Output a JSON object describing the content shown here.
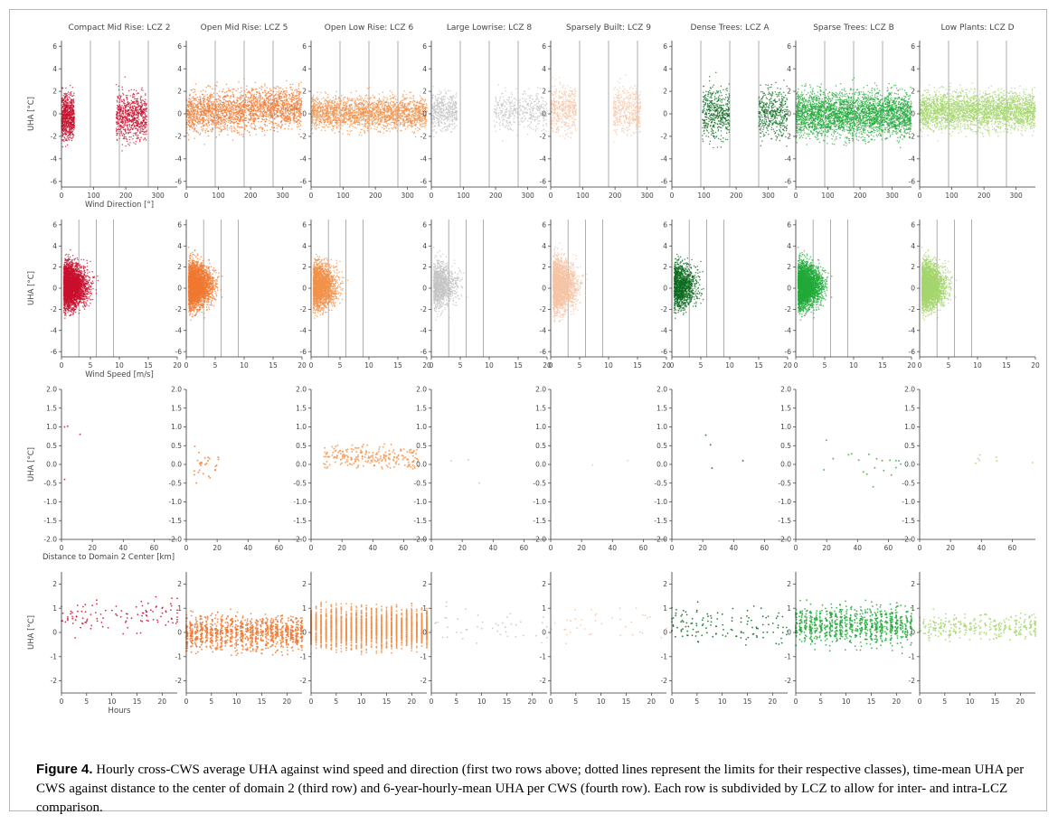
{
  "figure": {
    "caption_label": "Figure 4.",
    "caption_text": " Hourly cross-CWS average UHA against wind speed and direction (first two rows above; dotted lines represent the limits for their respective classes), time-mean UHA per CWS against distance to the center of domain 2 (third row) and 6-year-hourly-mean UHA per CWS (fourth row). Each row is subdivided by LCZ to allow for inter- and intra-LCZ comparison."
  },
  "chart_data": {
    "type": "scatter",
    "columns": [
      {
        "title": "Compact Mid Rise: LCZ 2",
        "color": "#c8102e"
      },
      {
        "title": "Open Mid Rise: LCZ 5",
        "color": "#f07830"
      },
      {
        "title": "Open Low Rise: LCZ 6",
        "color": "#f2914a"
      },
      {
        "title": "Large Lowrise: LCZ 8",
        "color": "#c4c4c4"
      },
      {
        "title": "Sparsely Built: LCZ 9",
        "color": "#f6c4a6"
      },
      {
        "title": "Dense Trees: LCZ A",
        "color": "#0a6b1e"
      },
      {
        "title": "Sparse Trees: LCZ B",
        "color": "#22aa3a"
      },
      {
        "title": "Low Plants: LCZ D",
        "color": "#a6d66e"
      }
    ],
    "rows": [
      {
        "variable": "wind_direction",
        "xlabel": "Wind Direction [°]",
        "ylabel": "UHA [°C]",
        "xlim": [
          0,
          360
        ],
        "ylim": [
          -6.5,
          6.5
        ],
        "xticks": [
          0,
          100,
          200,
          300
        ],
        "yticks": [
          -6,
          -4,
          -2,
          0,
          2,
          4,
          6
        ],
        "class_limits": [
          90,
          180,
          270
        ],
        "observed_ranges": [
          [
            [
              0,
              40
            ],
            [
              170,
              265
            ]
          ],
          [
            [
              0,
              360
            ]
          ],
          [
            [
              0,
              360
            ]
          ],
          [
            [
              0,
              80
            ],
            [
              195,
              360
            ]
          ],
          [
            [
              0,
              80
            ],
            [
              195,
              280
            ]
          ],
          [
            [
              95,
              180
            ],
            [
              270,
              360
            ]
          ],
          [
            [
              0,
              360
            ]
          ],
          [
            [
              0,
              360
            ]
          ]
        ]
      },
      {
        "variable": "wind_speed",
        "xlabel": "Wind Speed [m/s]",
        "ylabel": "UHA [°C]",
        "xlim": [
          0,
          20
        ],
        "ylim": [
          -6.5,
          6.5
        ],
        "xticks": [
          0,
          5,
          10,
          15,
          20
        ],
        "yticks": [
          -6,
          -4,
          -2,
          0,
          2,
          4,
          6
        ],
        "class_limits": [
          3,
          6,
          9
        ]
      },
      {
        "variable": "distance",
        "xlabel": "Distance to Domain 2 Center [km]",
        "ylabel": "UHA [°C]",
        "xlim": [
          0,
          75
        ],
        "ylim": [
          -2.0,
          2.0
        ],
        "xticks": [
          0,
          20,
          40,
          60
        ],
        "yticks": [
          -2.0,
          -1.5,
          -1.0,
          -0.5,
          0.0,
          0.5,
          1.0,
          1.5,
          2.0
        ]
      },
      {
        "variable": "hour",
        "xlabel": "Hours",
        "ylabel": "UHA [°C]",
        "xlim": [
          0,
          23
        ],
        "ylim": [
          -2.5,
          2.5
        ],
        "xticks": [
          0,
          5,
          10,
          15,
          20
        ],
        "yticks": [
          -2,
          -1,
          0,
          1,
          2
        ]
      }
    ]
  }
}
